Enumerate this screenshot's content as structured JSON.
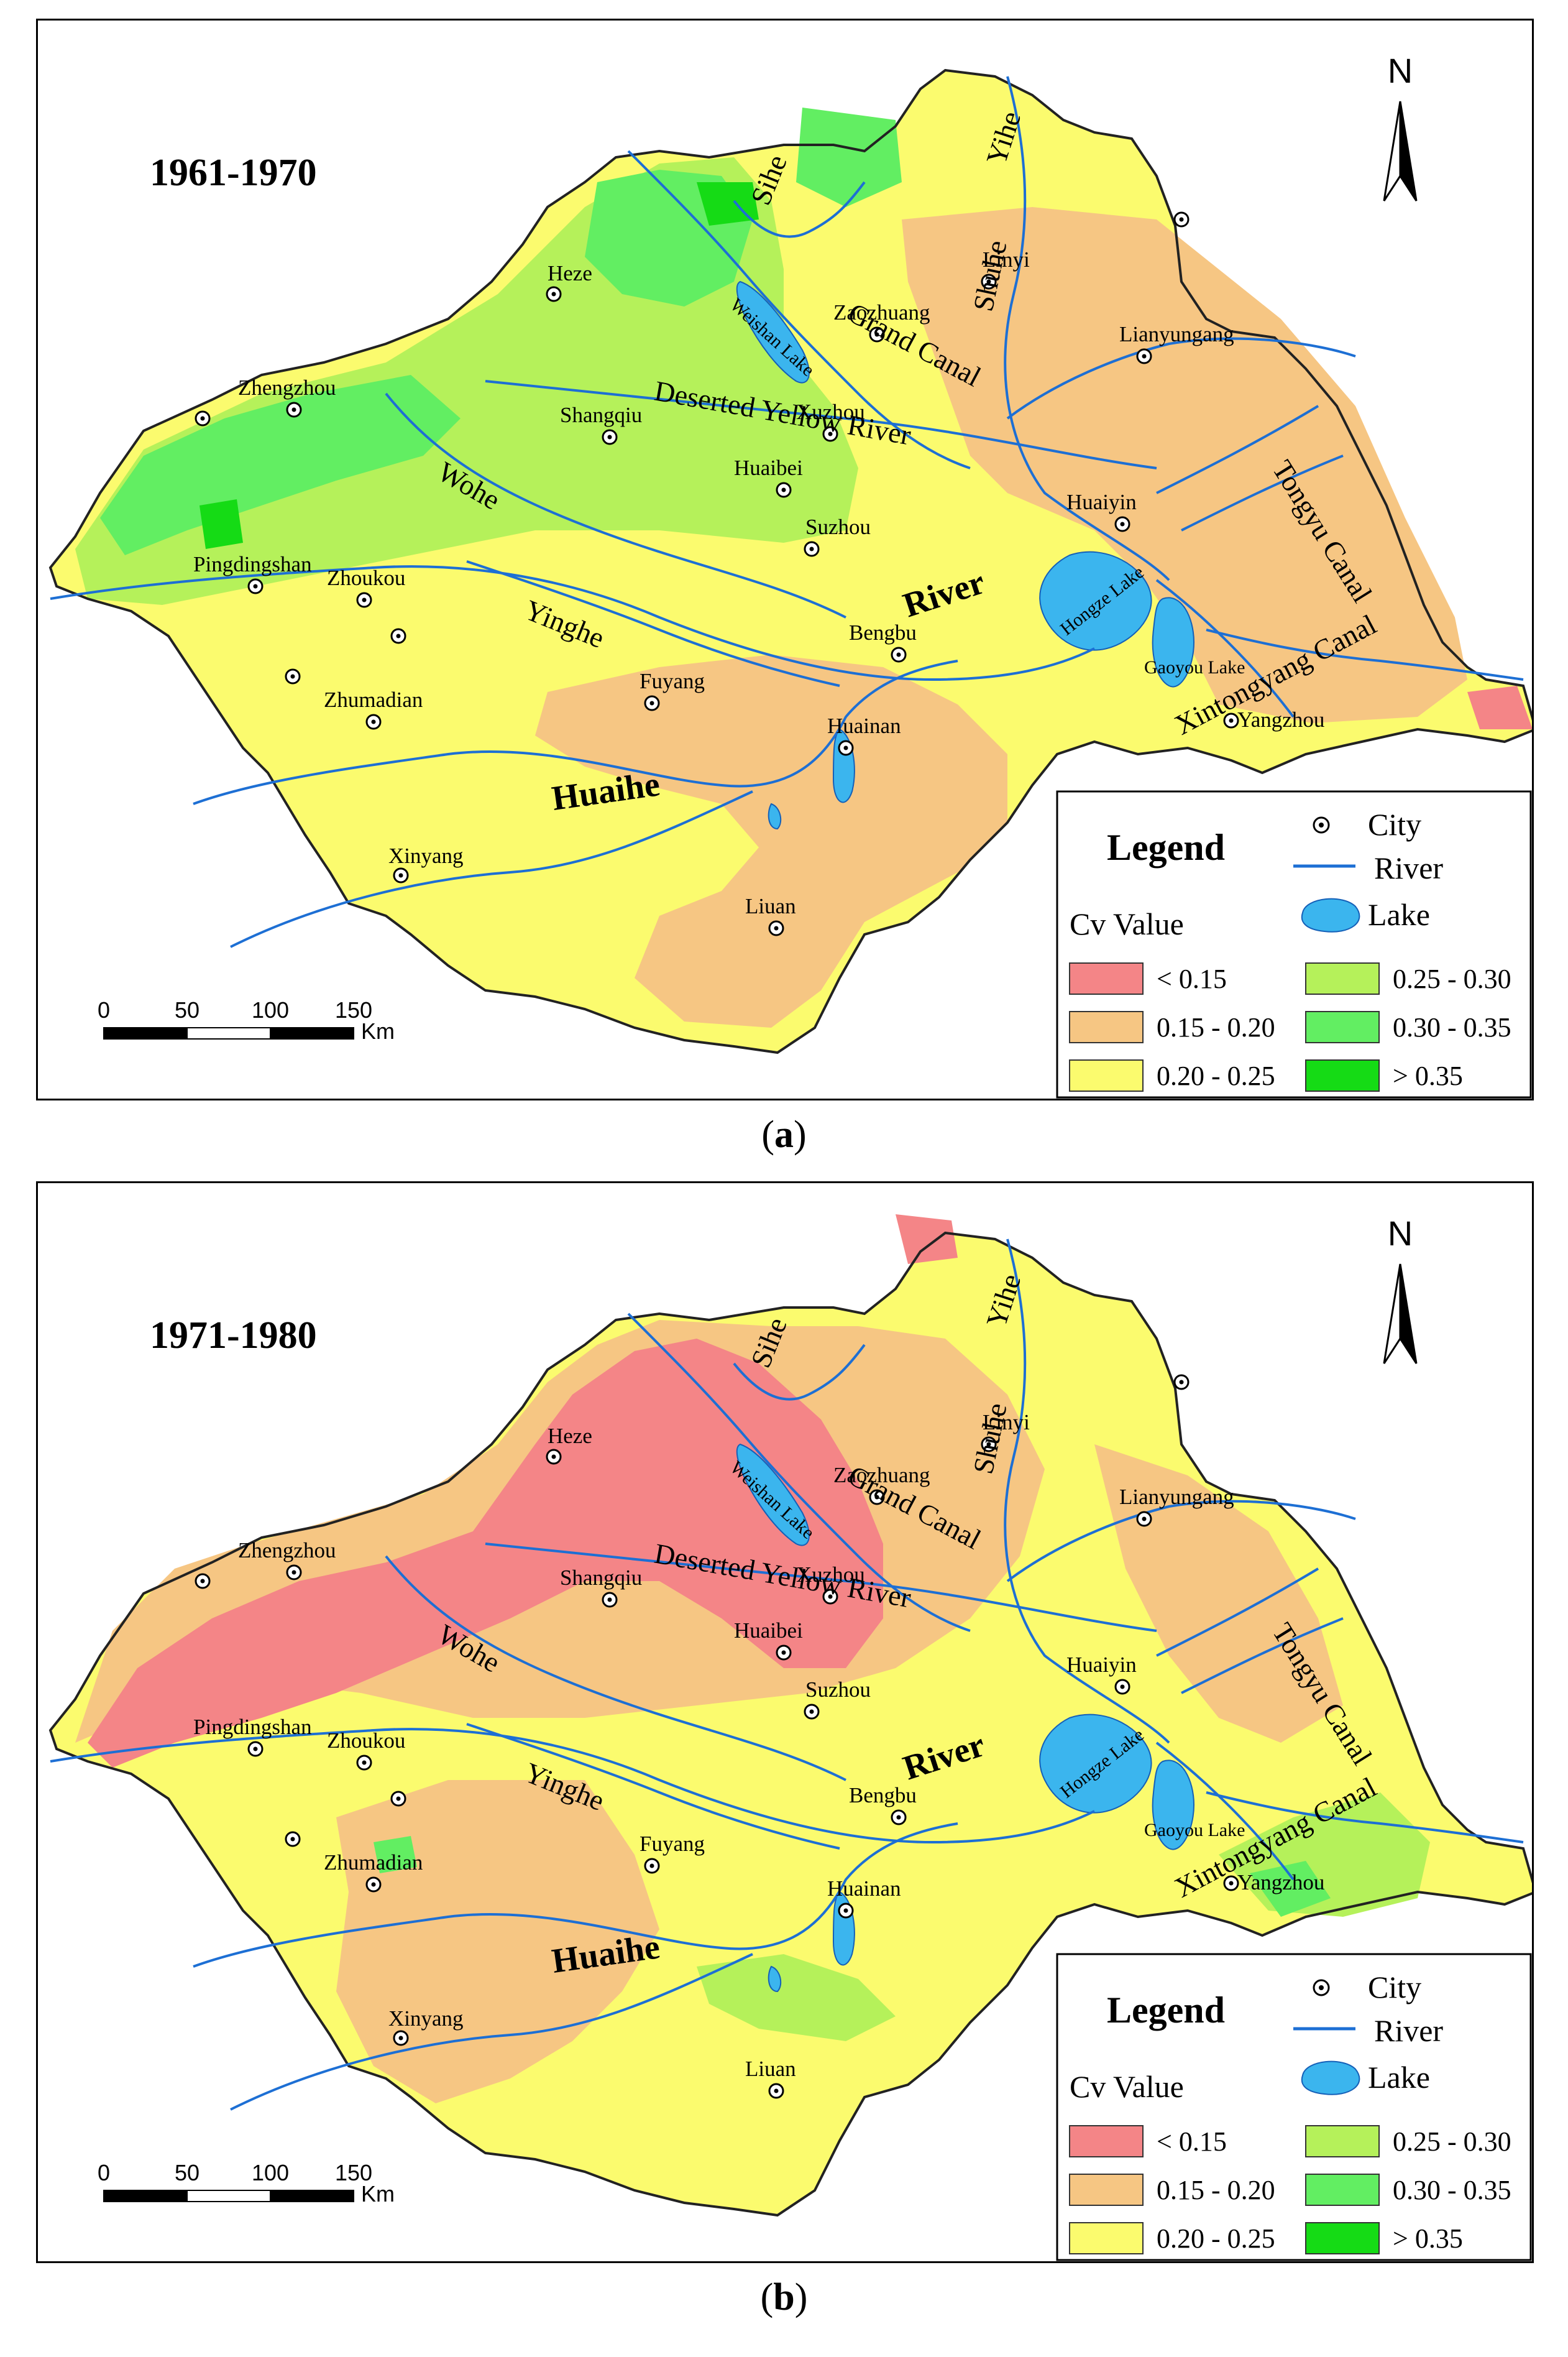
{
  "colors": {
    "cv_lt_015": "#f48587",
    "cv_015_020": "#f6c683",
    "cv_020_025": "#fbfb6e",
    "cv_025_030": "#b5f15a",
    "cv_030_035": "#62ee62",
    "cv_gt_035": "#15db15",
    "river": "#1d6fd4",
    "lake": "#3bb5ee"
  },
  "legend": {
    "title": "Legend",
    "subtitle": "Cv Value",
    "classes": [
      "< 0.15",
      "0.15 - 0.20",
      "0.20 - 0.25",
      "0.25 - 0.30",
      "0.30 - 0.35",
      "> 0.35"
    ],
    "symbols": {
      "city": "City",
      "river": "River",
      "lake": "Lake"
    }
  },
  "scale_bar": {
    "ticks": [
      "0",
      "50",
      "100",
      "150"
    ],
    "unit": "Km"
  },
  "north_label": "N",
  "cities": [
    "Heze",
    "Linyi",
    "Zaozhuang",
    "Lianyungang",
    "Zhengzhou",
    "Shangqiu",
    "Xuzhou",
    "Huaibei",
    "Huaiyin",
    "Suzhou",
    "Pingdingshan",
    "Zhoukou",
    "Bengbu",
    "Fuyang",
    "Zhumadian",
    "Huainan",
    "Yangzhou",
    "Xinyang",
    "Liuan"
  ],
  "river_labels": [
    "Sihe",
    "Yihe",
    "Shuhe",
    "Grand Canal",
    "Deserted Yellow River",
    "Wohe",
    "Yinghe",
    "River",
    "Huaihe",
    "Tongyu Canal",
    "Xintongyang Canal"
  ],
  "lake_labels": [
    "Weishan Lake",
    "Hongze Lake",
    "Gaoyou Lake"
  ],
  "panels": [
    {
      "caption_letter": "a",
      "period": "1961-1970"
    },
    {
      "caption_letter": "b",
      "period": "1971-1980"
    }
  ]
}
